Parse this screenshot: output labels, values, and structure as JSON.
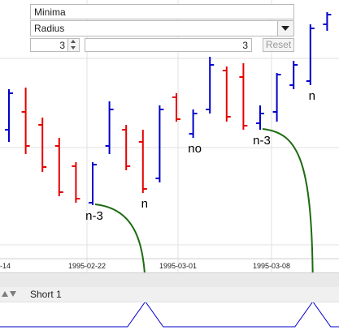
{
  "controls": {
    "title_value": "Minima",
    "mode_select_value": "Radius",
    "spinner_value": "3",
    "radius_value": "3",
    "reset_label": "Reset"
  },
  "lower_pane": {
    "label": "Short 1"
  },
  "icons": {
    "dropdown": "chevron-down-icon",
    "spin_up": "triangle-up-icon",
    "spin_down": "triangle-down-icon",
    "pane_up": "triangle-up-icon",
    "pane_down": "triangle-down-icon"
  },
  "colors": {
    "up_bar": "#0000cc",
    "down_bar": "#e60000",
    "annotation_curve": "#1e6b12",
    "indicator_line": "#0000cc",
    "grid": "#e2e2e2"
  },
  "chart_data": {
    "type": "ohlc",
    "x_tick_labels": [
      "-14",
      "1995-02-22",
      "1995-03-01",
      "1995-03-08"
    ],
    "ylim": [
      0,
      330
    ],
    "bars": [
      {
        "dir": "up",
        "high": 220,
        "low": 155,
        "open": 170,
        "close": 215
      },
      {
        "dir": "down",
        "high": 222,
        "low": 140,
        "open": 192,
        "close": 150
      },
      {
        "dir": "down",
        "high": 185,
        "low": 118,
        "open": 176,
        "close": 124
      },
      {
        "dir": "down",
        "high": 160,
        "low": 88,
        "open": 150,
        "close": 93
      },
      {
        "dir": "down",
        "high": 130,
        "low": 80,
        "open": 125,
        "close": 85
      },
      {
        "dir": "up",
        "high": 130,
        "low": 77,
        "open": 80,
        "close": 127
      },
      {
        "dir": "up",
        "high": 205,
        "low": 140,
        "open": 150,
        "close": 195
      },
      {
        "dir": "down",
        "high": 176,
        "low": 120,
        "open": 170,
        "close": 125
      },
      {
        "dir": "down",
        "high": 170,
        "low": 92,
        "open": 155,
        "close": 97
      },
      {
        "dir": "up",
        "high": 200,
        "low": 105,
        "open": 110,
        "close": 195
      },
      {
        "dir": "down",
        "high": 215,
        "low": 180,
        "open": 210,
        "close": 183
      },
      {
        "dir": "up",
        "high": 195,
        "low": 160,
        "open": 165,
        "close": 190
      },
      {
        "dir": "up",
        "high": 260,
        "low": 190,
        "open": 195,
        "close": 250
      },
      {
        "dir": "down",
        "high": 248,
        "low": 180,
        "open": 243,
        "close": 186
      },
      {
        "dir": "down",
        "high": 252,
        "low": 170,
        "open": 235,
        "close": 175
      },
      {
        "dir": "up",
        "high": 200,
        "low": 170,
        "open": 178,
        "close": 190
      },
      {
        "dir": "up",
        "high": 240,
        "low": 180,
        "open": 192,
        "close": 238
      },
      {
        "dir": "up",
        "high": 255,
        "low": 220,
        "open": 225,
        "close": 250
      },
      {
        "dir": "up",
        "high": 300,
        "low": 225,
        "open": 230,
        "close": 295
      },
      {
        "dir": "up",
        "high": 315,
        "low": 292,
        "open": 300,
        "close": 312
      }
    ],
    "annotations": [
      {
        "bar": 5,
        "text": "n-3"
      },
      {
        "bar": 8,
        "text": "n"
      },
      {
        "bar": 11,
        "text": "no"
      },
      {
        "bar": 15,
        "text": "n-3"
      },
      {
        "bar": 18,
        "text": "n"
      }
    ],
    "indicator": {
      "peaks_at_bars": [
        8,
        18
      ]
    }
  }
}
